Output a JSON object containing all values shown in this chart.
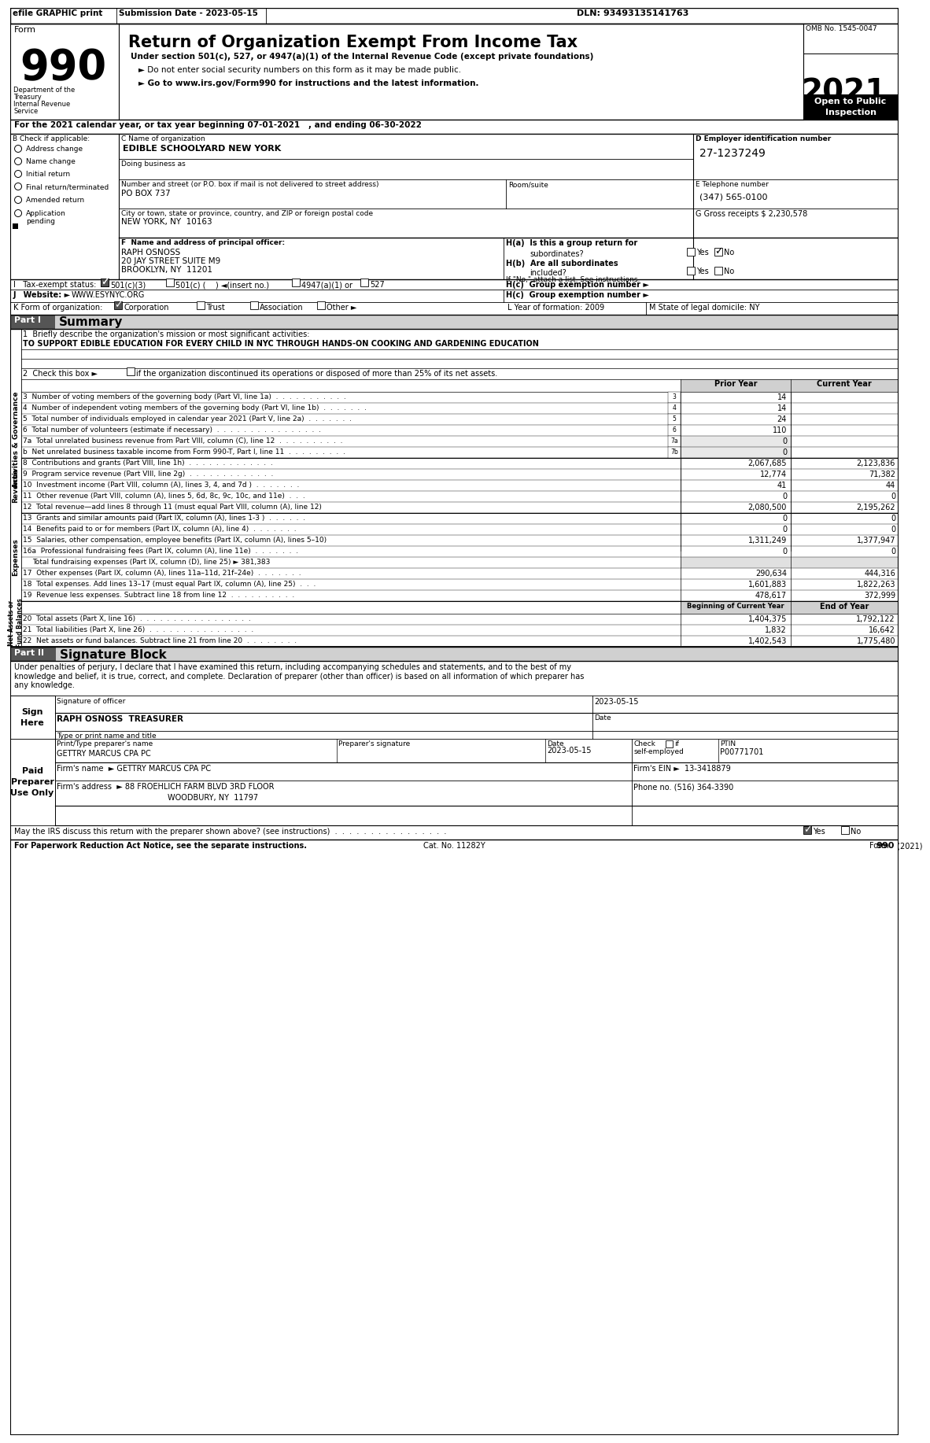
{
  "efile_left": "efile GRAPHIC print",
  "efile_mid": "Submission Date - 2023-05-15",
  "efile_right": "DLN: 93493135141763",
  "title": "Return of Organization Exempt From Income Tax",
  "subtitle1": "Under section 501(c), 527, or 4947(a)(1) of the Internal Revenue Code (except private foundations)",
  "subtitle2": "► Do not enter social security numbers on this form as it may be made public.",
  "subtitle3": "► Go to www.irs.gov/Form990 for instructions and the latest information.",
  "omb": "OMB No. 1545-0047",
  "year": "2021",
  "line_a": "For the 2021 calendar year, or tax year beginning 07-01-2021   , and ending 06-30-2022",
  "b_label": "B Check if applicable:",
  "b_options": [
    "Address change",
    "Name change",
    "Initial return",
    "Final return/terminated",
    "Amended return",
    "Application\npending"
  ],
  "org_name": "EDIBLE SCHOOLYARD NEW YORK",
  "dba_label": "Doing business as",
  "address_label": "Number and street (or P.O. box if mail is not delivered to street address)",
  "address_value": "PO BOX 737",
  "room_label": "Room/suite",
  "city_label": "City or town, state or province, country, and ZIP or foreign postal code",
  "city_value": "NEW YORK, NY  10163",
  "d_label": "D Employer identification number",
  "ein": "27-1237249",
  "e_label": "E Telephone number",
  "phone": "(347) 565-0100",
  "gross_receipts": "2,230,578",
  "f_label": "F  Name and address of principal officer:",
  "officer_name": "RAPH OSNOSS",
  "officer_addr1": "20 JAY STREET SUITE M9",
  "officer_addr2": "BROOKLYN, NY  11201",
  "ha_label": "H(a)  Is this a group return for",
  "ha_q": "subordinates?",
  "hb_label": "H(b)  Are all subordinates",
  "hb_q": "included?",
  "hb_note": "If \"No,\" attach a list. See instructions.",
  "hc_label": "H(c)  Group exemption number ►",
  "i_501c3": "501(c)(3)",
  "i_501c": "501(c) (    ) ◄(insert no.)",
  "i_4947": "4947(a)(1) or",
  "i_527": "527",
  "website": "WWW.ESYNYC.ORG",
  "k_corp": "Corporation",
  "k_trust": "Trust",
  "k_assoc": "Association",
  "k_other": "Other ►",
  "l_label": "L Year of formation: 2009",
  "m_label": "M State of legal domicile: NY",
  "mission": "TO SUPPORT EDIBLE EDUCATION FOR EVERY CHILD IN NYC THROUGH HANDS-ON COOKING AND GARDENING EDUCATION",
  "gov_lines": [
    [
      "3",
      "Number of voting members of the governing body (Part VI, line 1a)",
      "3",
      "14"
    ],
    [
      "4",
      "Number of independent voting members of the governing body (Part VI, line 1b)",
      "4",
      "14"
    ],
    [
      "5",
      "Total number of individuals employed in calendar year 2021 (Part V, line 2a)",
      "5",
      "24"
    ],
    [
      "6",
      "Total number of volunteers (estimate if necessary)",
      "6",
      "110"
    ],
    [
      "7a",
      "Total unrelated business revenue from Part VIII, column (C), line 12",
      "7a",
      "0"
    ],
    [
      "b",
      "Net unrelated business taxable income from Form 990-T, Part I, line 11",
      "7b",
      "0"
    ]
  ],
  "revenue_lines": [
    [
      "8",
      "Contributions and grants (Part VIII, line 1h)",
      "2,067,685",
      "2,123,836"
    ],
    [
      "9",
      "Program service revenue (Part VIII, line 2g)",
      "12,774",
      "71,382"
    ],
    [
      "10",
      "Investment income (Part VIII, column (A), lines 3, 4, and 7d )",
      "41",
      "44"
    ],
    [
      "11",
      "Other revenue (Part VIII, column (A), lines 5, 6d, 8c, 9c, 10c, and 11e)",
      "0",
      "0"
    ],
    [
      "12",
      "Total revenue—add lines 8 through 11 (must equal Part VIII, column (A), line 12)",
      "2,080,500",
      "2,195,262"
    ]
  ],
  "expenses_lines": [
    [
      "13",
      "Grants and similar amounts paid (Part IX, column (A), lines 1-3 )",
      "0",
      "0"
    ],
    [
      "14",
      "Benefits paid to or for members (Part IX, column (A), line 4)",
      "0",
      "0"
    ],
    [
      "15",
      "Salaries, other compensation, employee benefits (Part IX, column (A), lines 5–10)",
      "1,311,249",
      "1,377,947"
    ],
    [
      "16a",
      "Professional fundraising fees (Part IX, column (A), line 11e)",
      "0",
      "0"
    ],
    [
      "b",
      "Total fundraising expenses (Part IX, column (D), line 25) ► 381,383",
      "",
      ""
    ],
    [
      "17",
      "Other expenses (Part IX, column (A), lines 11a–11d, 21f–24e)",
      "290,634",
      "444,316"
    ],
    [
      "18",
      "Total expenses. Add lines 13–17 (must equal Part IX, column (A), line 25)",
      "1,601,883",
      "1,822,263"
    ],
    [
      "19",
      "Revenue less expenses. Subtract line 18 from line 12",
      "478,617",
      "372,999"
    ]
  ],
  "netassets_lines": [
    [
      "20",
      "Total assets (Part X, line 16)",
      "1,404,375",
      "1,792,122"
    ],
    [
      "21",
      "Total liabilities (Part X, line 26)",
      "1,832",
      "16,642"
    ],
    [
      "22",
      "Net assets or fund balances. Subtract line 21 from line 20",
      "1,402,543",
      "1,775,480"
    ]
  ],
  "sig_text": "Under penalties of perjury, I declare that I have examined this return, including accompanying schedules and statements, and to the best of my\nknowledge and belief, it is true, correct, and complete. Declaration of preparer (other than officer) is based on all information of which preparer has\nany knowledge.",
  "sig_date": "2023-05-15",
  "sig_officer_name": "RAPH OSNOSS  TREASURER",
  "preparer_name": "GETTRY MARCUS CPA PC",
  "preparer_date": "2023-05-15",
  "preparer_ptin": "P00771701",
  "firm_name": "GETTRY MARCUS CPA PC",
  "firm_ein": "13-3418879",
  "firm_addr": "88 FROEHLICH FARM BLVD 3RD FLOOR",
  "firm_city": "WOODBURY, NY  11797",
  "firm_phone": "(516) 364-3390",
  "discuss_dots": "May the IRS discuss this return with the preparer shown above? (see instructions)  .  .  .  .  .  .  .  .  .  .  .  .  .  .  .  .",
  "paperwork_label": "For Paperwork Reduction Act Notice, see the separate instructions.",
  "cat_no": "Cat. No. 11282Y",
  "form_footer": "Form 990 (2021)"
}
